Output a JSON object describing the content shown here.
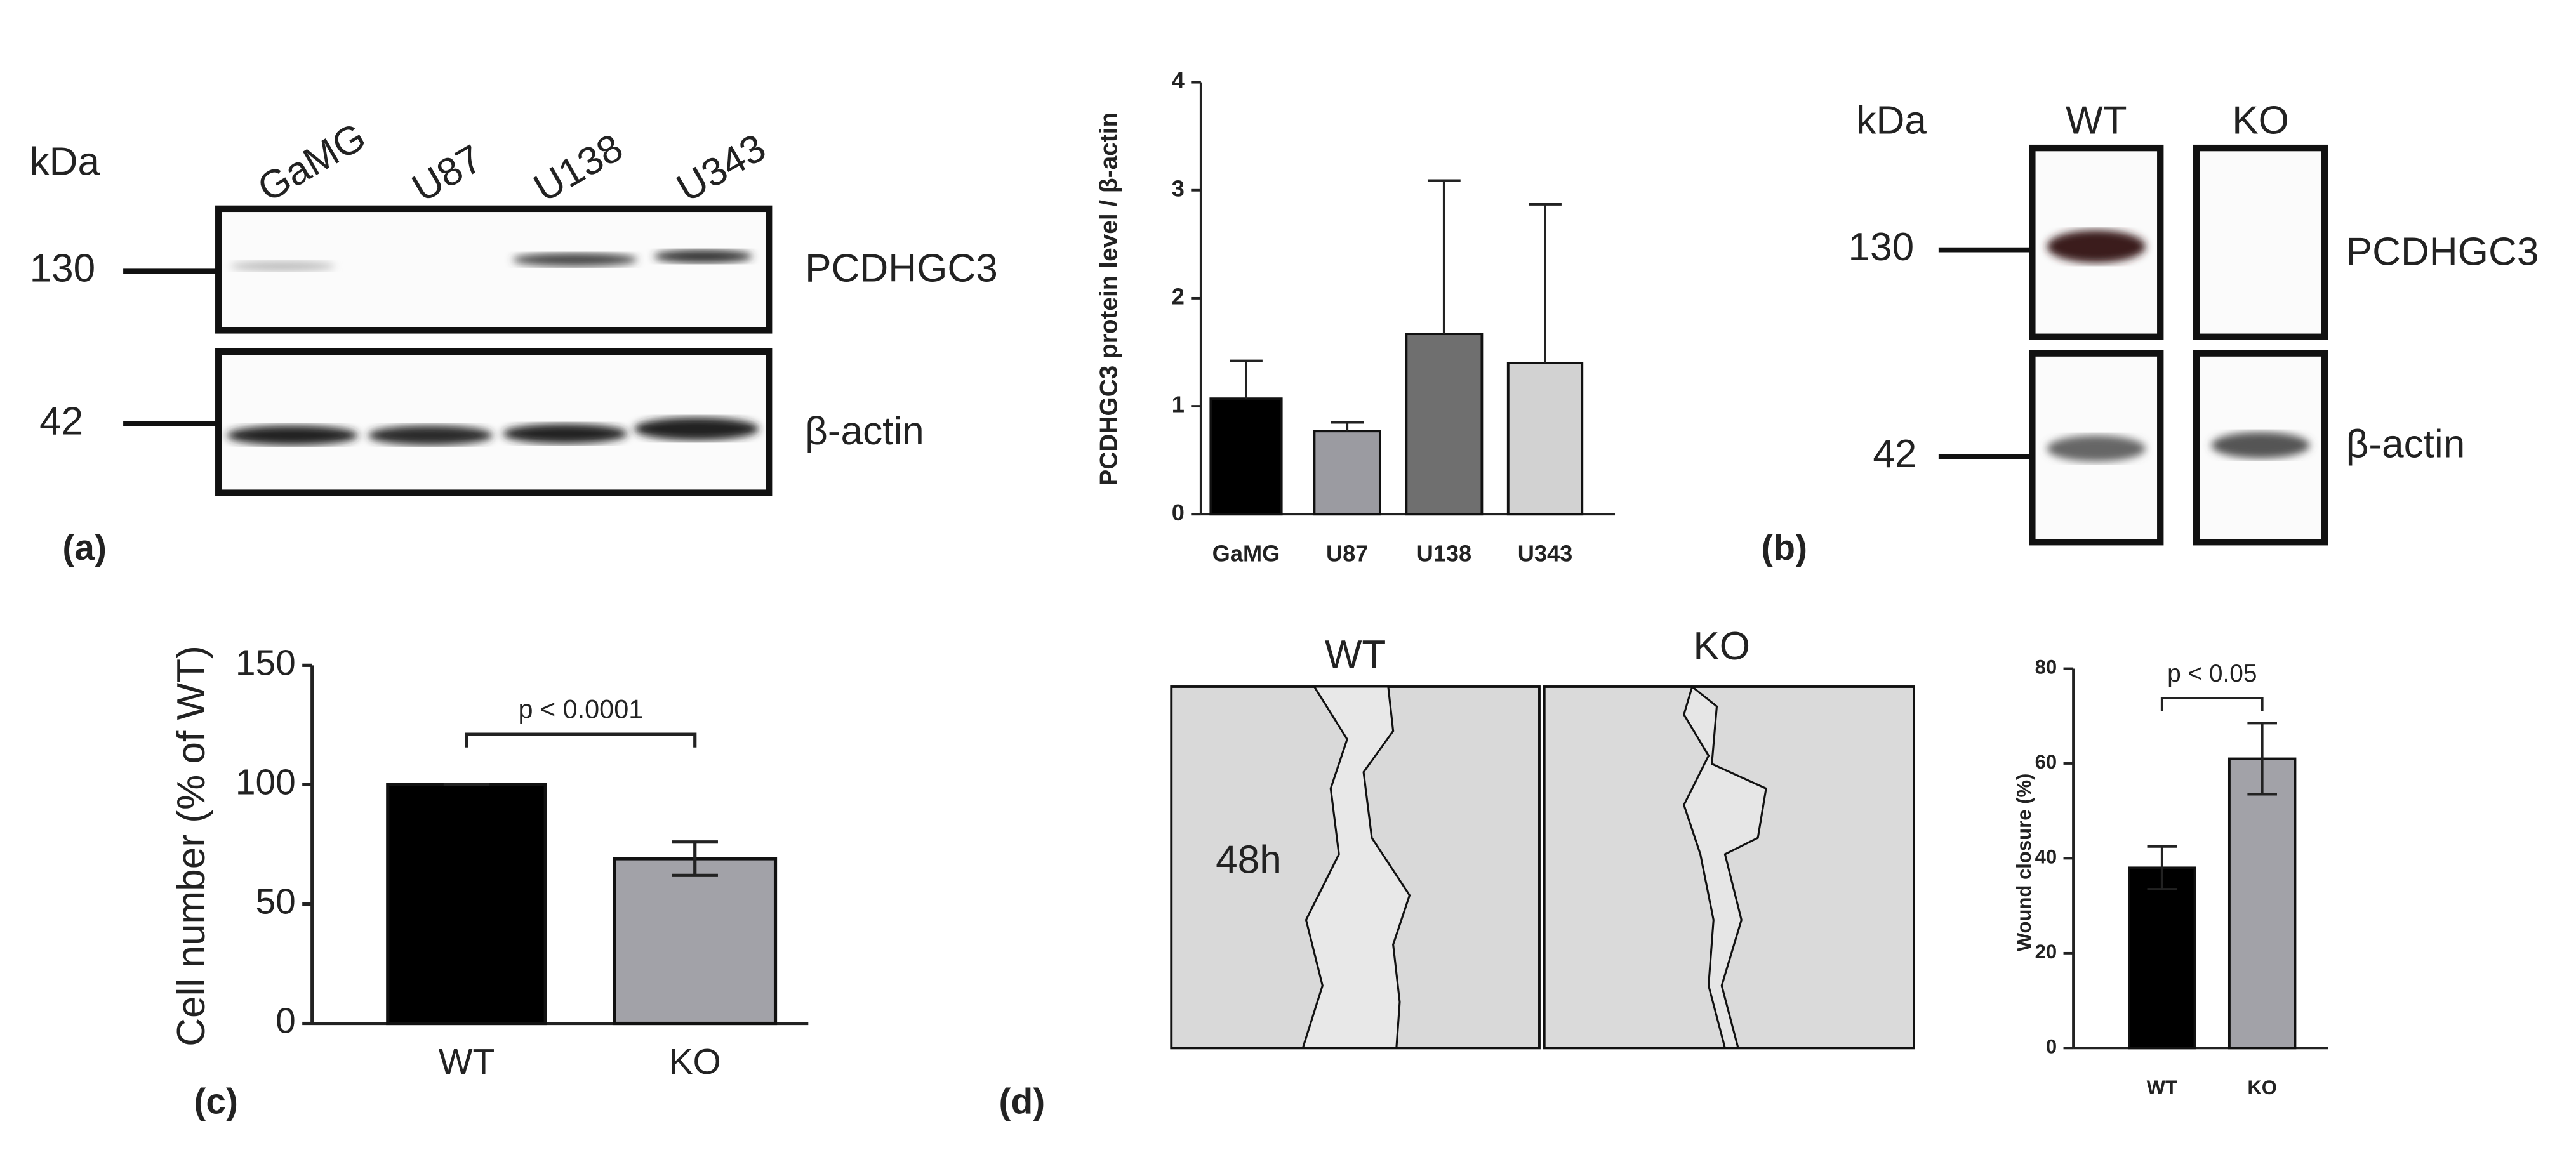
{
  "chart_data": [
    {
      "type": "bar",
      "y_label": "PCDHGC3 protein level / β-actin",
      "categories": [
        "GaMG",
        "U87",
        "U138",
        "U343"
      ],
      "values": [
        1.07,
        0.77,
        1.67,
        1.4
      ],
      "errors": [
        0.35,
        0.08,
        1.42,
        1.47
      ],
      "error_bars": "upper",
      "colors": [
        "#000000",
        "#9b9ba1",
        "#6f6f6f",
        "#d2d2d2"
      ],
      "ylim": [
        0,
        4
      ],
      "yticks": [
        0,
        1,
        2,
        3,
        4
      ]
    },
    {
      "type": "bar",
      "y_label": "Cell number (% of WT)",
      "annotation": "p < 0.0001",
      "categories": [
        "WT",
        "KO"
      ],
      "values": [
        100,
        69
      ],
      "errors": [
        0,
        7
      ],
      "error_bars": "both",
      "colors": [
        "#000000",
        "#a2a2a8"
      ],
      "ylim": [
        0,
        150
      ],
      "yticks": [
        0,
        50,
        100,
        150
      ]
    },
    {
      "type": "bar",
      "y_label": "Wound closure (%)",
      "annotation": "p < 0.05",
      "categories": [
        "WT",
        "KO"
      ],
      "values": [
        38,
        61
      ],
      "errors": [
        4.5,
        7.5
      ],
      "error_bars": "both",
      "colors": [
        "#000000",
        "#a2a2a8"
      ],
      "ylim": [
        0,
        80
      ],
      "yticks": [
        0,
        20,
        40,
        60,
        80
      ]
    }
  ],
  "blot_a": {
    "unit": "kDa",
    "lanes": [
      "GaMG",
      "U87",
      "U138",
      "U343"
    ],
    "markers": [
      "130",
      "42"
    ],
    "proteins": [
      "PCDHGC3",
      "β-actin"
    ]
  },
  "blot_b": {
    "unit": "kDa",
    "lanes": [
      "WT",
      "KO"
    ],
    "markers": [
      "130",
      "42"
    ],
    "proteins": [
      "PCDHGC3",
      "β-actin"
    ]
  },
  "wound_images": {
    "conditions": [
      "WT",
      "KO"
    ],
    "time": "48h"
  },
  "panel_labels": [
    "(a)",
    "(b)",
    "(c)",
    "(d)"
  ]
}
